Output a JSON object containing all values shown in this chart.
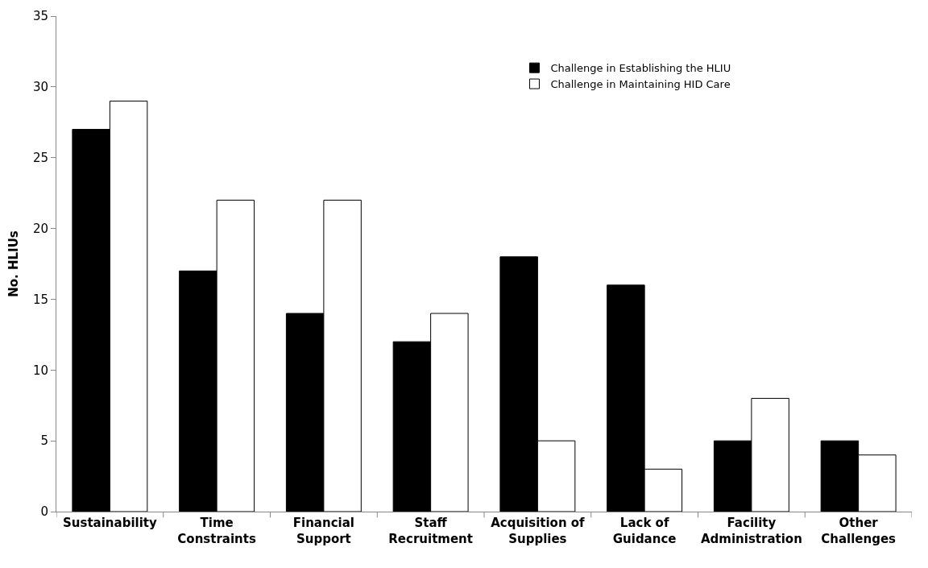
{
  "chart_data": {
    "type": "bar",
    "ylabel": "No. HLIUs",
    "categories": [
      "Sustainability",
      "Time Constraints",
      "Financial Support",
      "Staff Recruitment",
      "Acquisition of Supplies",
      "Lack of Guidance",
      "Facility Administration",
      "Other Challenges"
    ],
    "series": [
      {
        "name": "Challenge in Establishing the HLIU",
        "color": "#000000",
        "values": [
          27,
          17,
          14,
          12,
          18,
          16,
          5,
          5
        ]
      },
      {
        "name": "Challenge in Maintaining HID Care",
        "color": "#ffffff",
        "values": [
          29,
          22,
          22,
          14,
          5,
          3,
          8,
          4
        ]
      }
    ],
    "ylim": [
      0,
      35
    ],
    "yticks": [
      0,
      5,
      10,
      15,
      20,
      25,
      30,
      35
    ],
    "grid": false,
    "legend": "top right"
  }
}
